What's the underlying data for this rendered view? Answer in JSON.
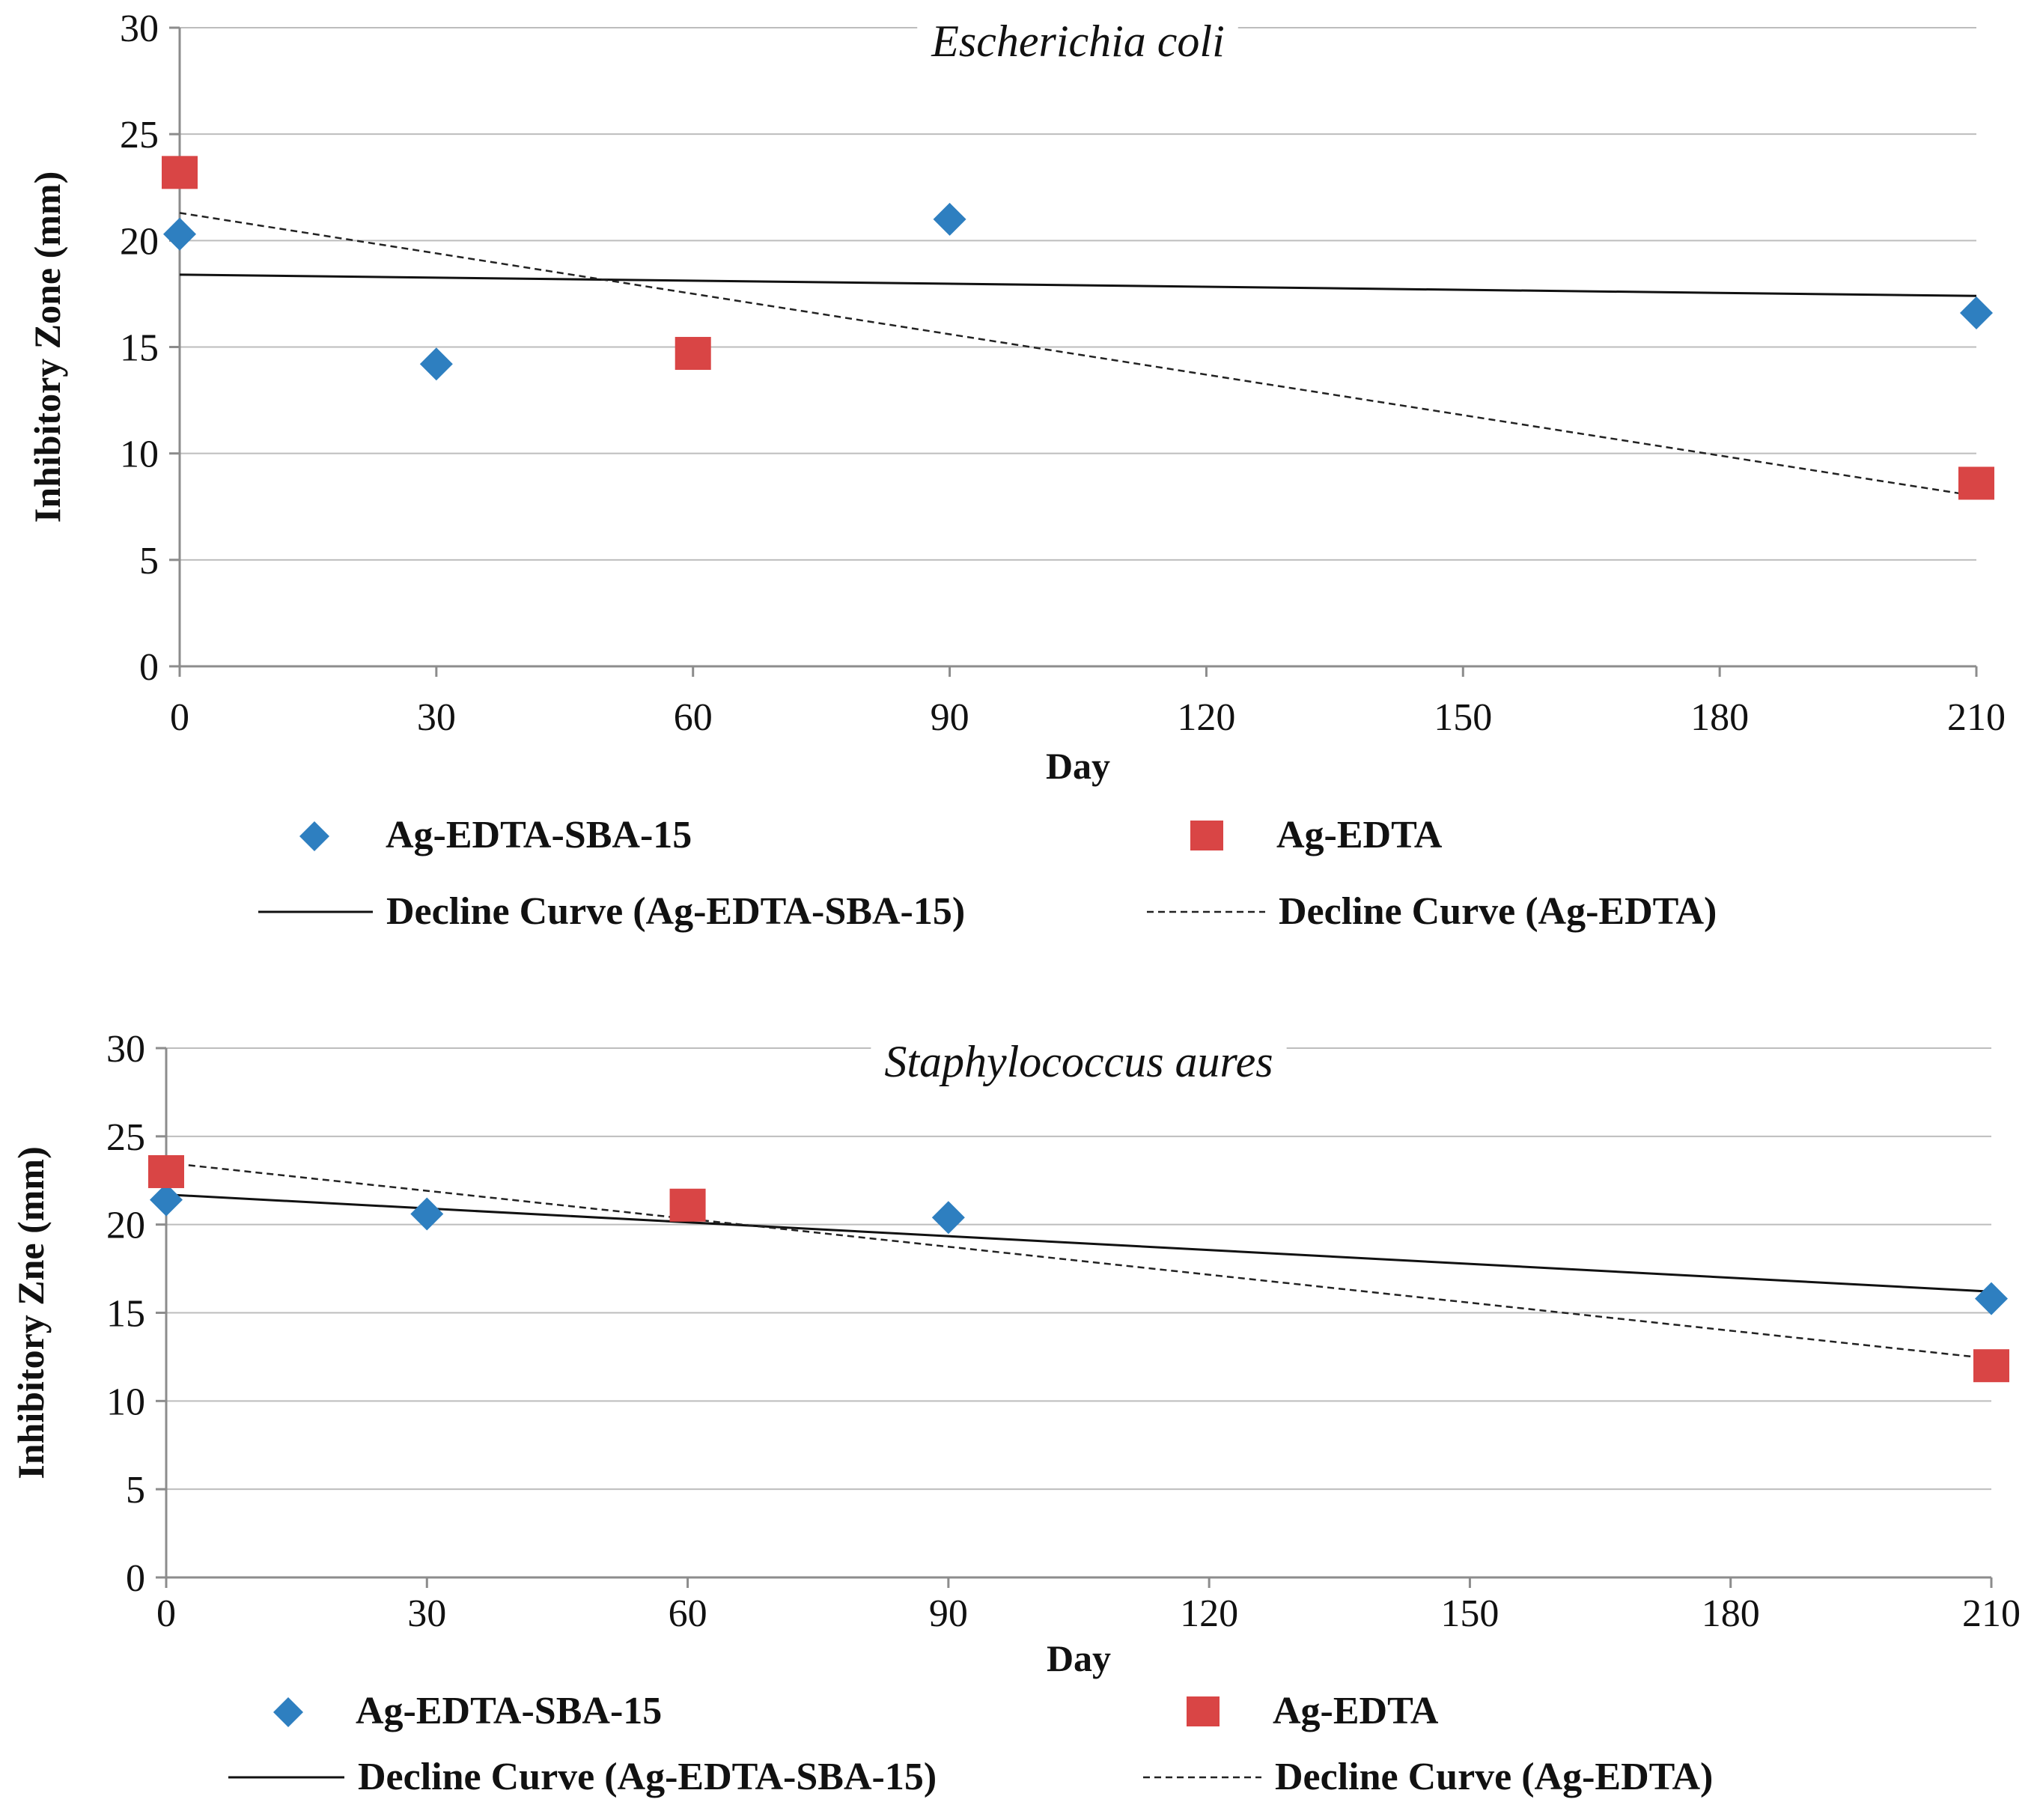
{
  "chart_data": [
    {
      "type": "scatter",
      "title": "Escherichia coli",
      "xlabel": "Day",
      "ylabel": "Inhibitory  Zone (mm)",
      "xlim": [
        0,
        210
      ],
      "ylim": [
        0,
        30
      ],
      "xticks": [
        0,
        30,
        60,
        90,
        120,
        150,
        180,
        210
      ],
      "yticks": [
        0,
        5,
        10,
        15,
        20,
        25,
        30
      ],
      "grid": true,
      "legend_position": "bottom",
      "series": [
        {
          "name": "Ag-EDTA-SBA-15",
          "marker": "diamond",
          "color": "#2e7fc0",
          "x": [
            0,
            30,
            90,
            210
          ],
          "y": [
            20.3,
            14.2,
            21.0,
            16.6
          ]
        },
        {
          "name": "Ag-EDTA",
          "marker": "square",
          "color": "#d94545",
          "x": [
            0,
            60,
            210
          ],
          "y": [
            23.2,
            14.7,
            8.6
          ]
        }
      ],
      "trendlines": [
        {
          "name": "Decline Curve (Ag-EDTA-SBA-15)",
          "style": "solid",
          "x": [
            0,
            210
          ],
          "y": [
            18.4,
            17.4
          ]
        },
        {
          "name": "Decline Curve (Ag-EDTA)",
          "style": "dashed",
          "x": [
            0,
            210
          ],
          "y": [
            21.3,
            8.0
          ]
        }
      ]
    },
    {
      "type": "scatter",
      "title": "Staphylococcus aures",
      "xlabel": "Day",
      "ylabel": "Inhibitory  Zne (mm)",
      "xlim": [
        0,
        210
      ],
      "ylim": [
        0,
        30
      ],
      "xticks": [
        0,
        30,
        60,
        90,
        120,
        150,
        180,
        210
      ],
      "yticks": [
        0,
        5,
        10,
        15,
        20,
        25,
        30
      ],
      "grid": true,
      "legend_position": "bottom",
      "series": [
        {
          "name": "Ag-EDTA-SBA-15",
          "marker": "diamond",
          "color": "#2e7fc0",
          "x": [
            0,
            30,
            90,
            210
          ],
          "y": [
            21.4,
            20.6,
            20.4,
            15.8
          ]
        },
        {
          "name": "Ag-EDTA",
          "marker": "square",
          "color": "#d94545",
          "x": [
            0,
            60,
            210
          ],
          "y": [
            23.0,
            21.1,
            12.0
          ]
        }
      ],
      "trendlines": [
        {
          "name": "Decline Curve (Ag-EDTA-SBA-15)",
          "style": "solid",
          "x": [
            0,
            210
          ],
          "y": [
            21.7,
            16.2
          ]
        },
        {
          "name": "Decline Curve (Ag-EDTA)",
          "style": "dashed",
          "x": [
            0,
            210
          ],
          "y": [
            23.5,
            12.4
          ]
        }
      ]
    }
  ]
}
